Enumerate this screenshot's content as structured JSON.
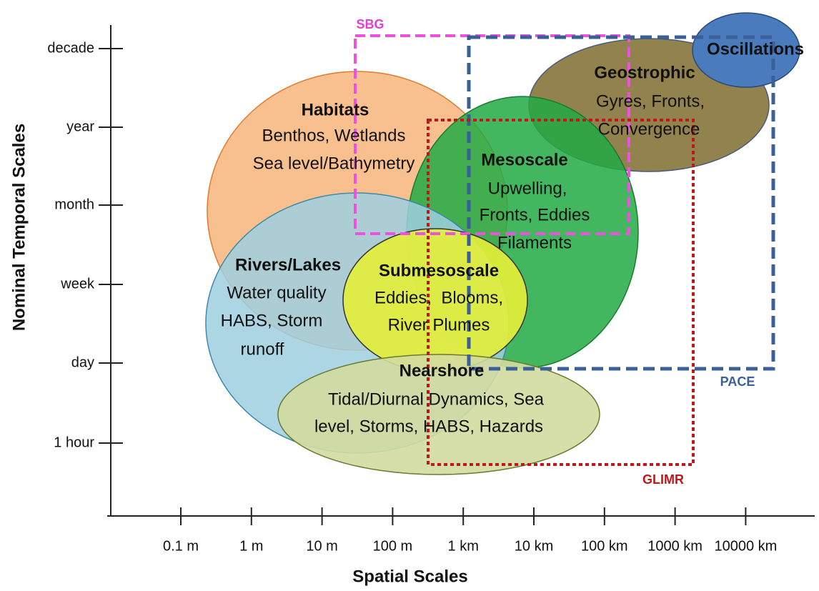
{
  "axes": {
    "y_label": "Nominal Temporal Scales",
    "x_label": "Spatial Scales",
    "y_ticks": [
      "decade",
      "year",
      "month",
      "week",
      "day",
      "1 hour"
    ],
    "x_ticks": [
      "0.1 m",
      "1 m",
      "10 m",
      "100 m",
      "1 km",
      "10 km",
      "100 km",
      "1000 km",
      "10000 km"
    ]
  },
  "regions": [
    {
      "title": "Habitats",
      "lines": [
        "Benthos, Wetlands",
        "Sea level/Bathymetry"
      ]
    },
    {
      "title": "Geostrophic",
      "lines": [
        "Gyres, Fronts,",
        "Convergence"
      ]
    },
    {
      "title": "Oscillations",
      "lines": []
    },
    {
      "title": "Mesoscale",
      "lines": [
        "Upwelling,",
        "Fronts, Eddies",
        "Filaments"
      ]
    },
    {
      "title": "Rivers/Lakes",
      "lines": [
        "Water quality",
        "HABS, Storm",
        "runoff"
      ]
    },
    {
      "title": "Submesoscale",
      "lines": [
        "Eddies,  Blooms,",
        "River Plumes"
      ]
    },
    {
      "title": "Nearshore",
      "lines": [
        "Tidal/Diurnal Dynamics, Sea",
        "level, Storms, HABS, Hazards"
      ]
    }
  ],
  "boxes": [
    {
      "label": "SBG"
    },
    {
      "label": "PACE"
    },
    {
      "label": "GLIMR"
    }
  ]
}
